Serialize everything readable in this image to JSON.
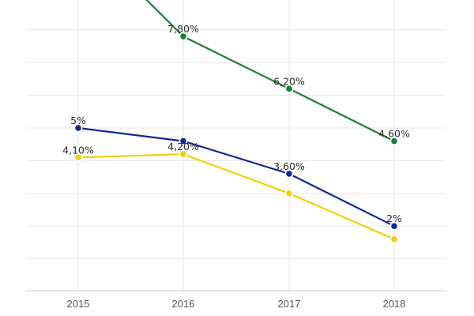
{
  "chart_data": {
    "type": "line",
    "title": "",
    "xlabel": "",
    "ylabel": "",
    "categories": [
      "2015",
      "2016",
      "2017",
      "2018"
    ],
    "ylim": [
      0,
      10
    ],
    "grid": true,
    "series": [
      {
        "color": "#1a7f37",
        "values": [
          11.0,
          7.8,
          6.2,
          4.6
        ],
        "labels": [
          "",
          "7,80%",
          "6,20%",
          "4,60%"
        ]
      },
      {
        "color": "#10279a",
        "values": [
          5.0,
          4.6,
          3.6,
          2.0
        ],
        "labels": [
          "5%",
          "",
          "3,60%",
          "2%"
        ]
      },
      {
        "color": "#f2cf00",
        "values": [
          4.1,
          4.2,
          3.0,
          1.6
        ],
        "labels": [
          "4,10%",
          "4,20%",
          "",
          ""
        ]
      }
    ]
  }
}
